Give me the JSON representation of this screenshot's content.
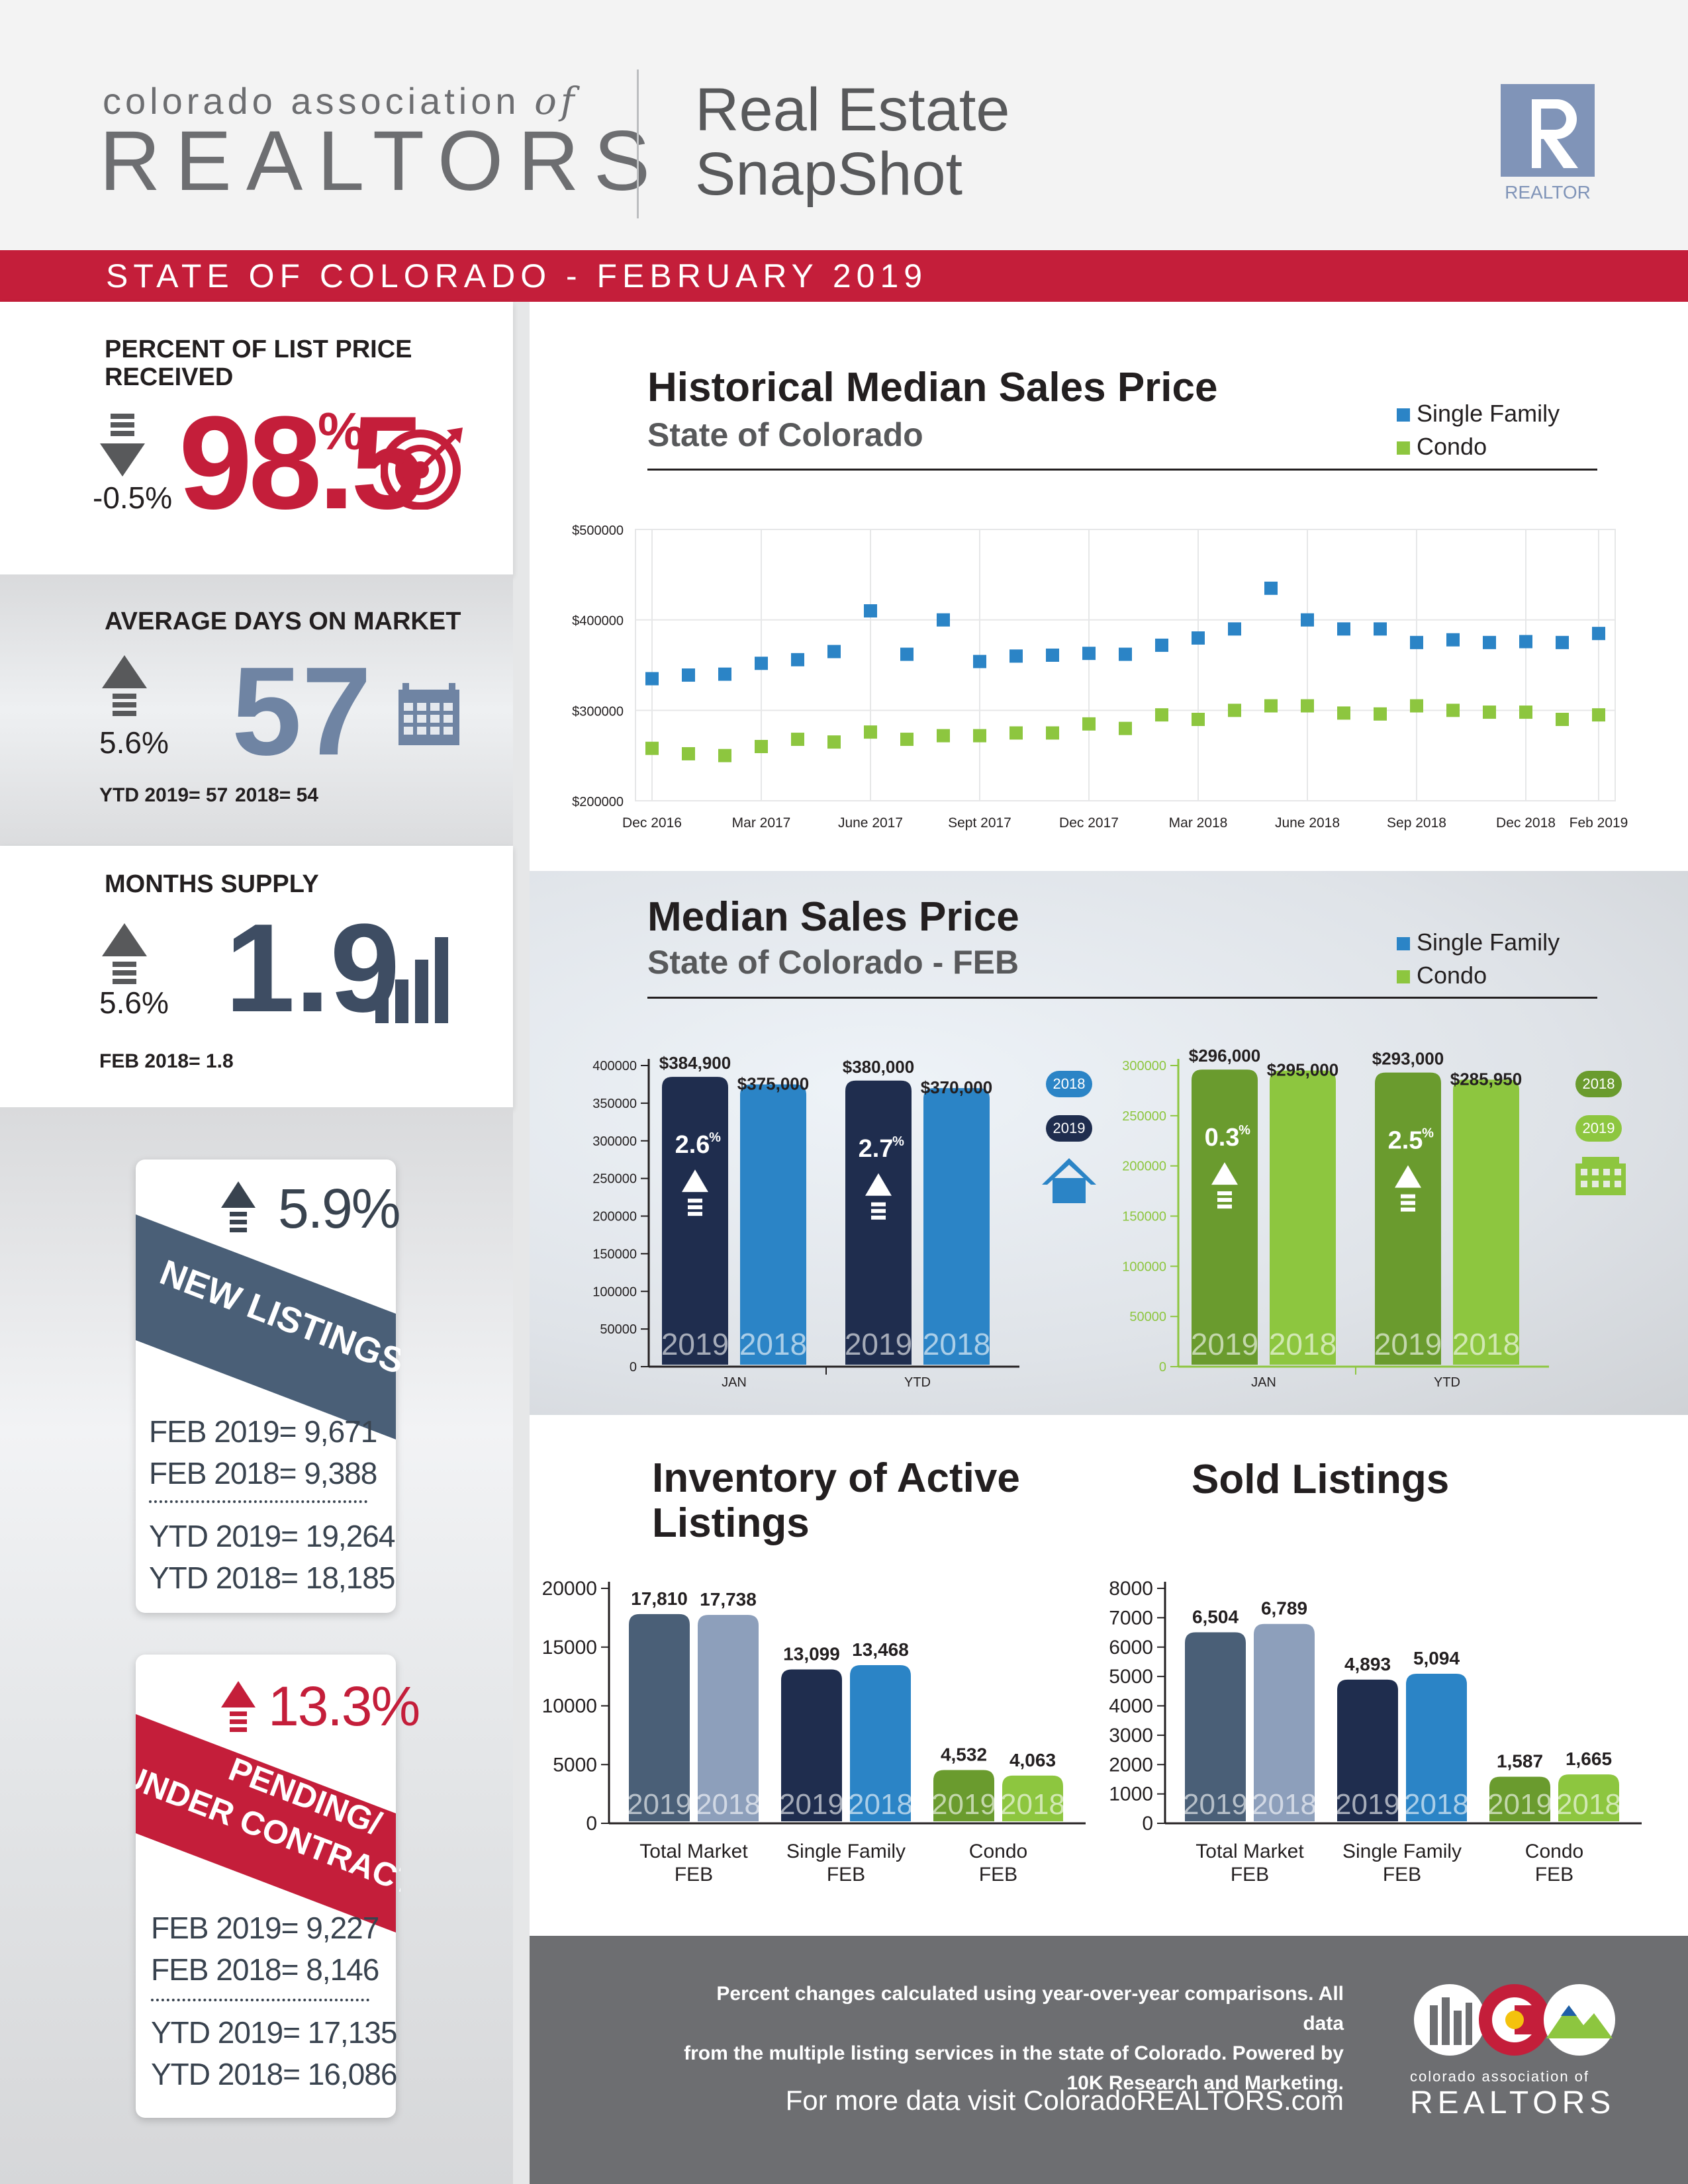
{
  "header": {
    "org_line1": "colorado association",
    "org_of": "of",
    "org_line2": "REALTORS",
    "title_line1": "Real Estate",
    "title_line2": "SnapShot",
    "logo_text": "REALTOR",
    "logo_letter": "R"
  },
  "band": {
    "text": "STATE OF COLORADO - FEBRUARY 2019"
  },
  "list_price": {
    "label_line1": "PERCENT OF LIST PRICE",
    "label_line2": "RECEIVED",
    "change": "-0.5%",
    "value": "98.5",
    "unit": "%"
  },
  "days_on_market": {
    "label": "AVERAGE DAYS ON MARKET",
    "change": "5.6%",
    "value": "57",
    "ytd_2019": "YTD 2019= 57",
    "ytd_2018": "2018= 54"
  },
  "months_supply": {
    "label": "MONTHS SUPPLY",
    "change": "5.6%",
    "value": "1.9",
    "feb_2018": "FEB 2018= 1.8"
  },
  "new_listings": {
    "change": "5.9%",
    "banner": "NEW LISTINGS",
    "lines": [
      "FEB 2019= 9,671",
      "FEB 2018= 9,388",
      "YTD 2019= 19,264",
      "YTD 2018= 18,185"
    ]
  },
  "pending": {
    "change": "13.3%",
    "banner1": "PENDING/",
    "banner2": "UNDER CONTRACT",
    "lines": [
      "FEB 2019= 9,227",
      "FEB 2018= 8,146",
      "YTD 2019= 17,135",
      "YTD 2018= 16,086"
    ]
  },
  "historical": {
    "title": "Historical Median Sales Price",
    "subtitle": "State of Colorado",
    "legend": [
      "Single Family",
      "Condo"
    ]
  },
  "median_feb": {
    "title": "Median Sales Price",
    "subtitle": "State of Colorado - FEB",
    "legend": [
      "Single Family",
      "Condo"
    ],
    "year_tags": [
      "2018",
      "2019"
    ]
  },
  "inventory": {
    "title_line1": "Inventory of Active",
    "title_line2": "Listings"
  },
  "sold": {
    "title": "Sold Listings"
  },
  "footer": {
    "note_line1": "Percent changes calculated using year-over-year comparisons. All data",
    "note_line2": "from the multiple listing services in the state of Colorado. Powered by",
    "note_line3": "10K Research and Marketing.",
    "link": "For more data visit ColoradoREALTORS.com",
    "org_line1": "colorado association of",
    "org_line2": "REALTORS"
  },
  "colors": {
    "red": "#c41e3a",
    "sf_2019": "#1f2d4e",
    "sf_2018": "#2b84c6",
    "condo_2019": "#6a9b2e",
    "condo_2018": "#8dc63f",
    "total_2019": "#4a5f77",
    "total_2018": "#8d9fbb",
    "hist_sf": "#2b84c6",
    "hist_condo": "#8dc63f"
  },
  "chart_data": [
    {
      "id": "historical",
      "type": "scatter",
      "title": "Historical Median Sales Price",
      "subtitle": "State of Colorado",
      "x_tick_labels": [
        "Dec 2016",
        "Mar 2017",
        "June 2017",
        "Sept 2017",
        "Dec 2017",
        "Mar 2018",
        "June 2018",
        "Sep 2018",
        "Dec 2018",
        "Feb 2019"
      ],
      "x": [
        "Dec 2016",
        "Jan 2017",
        "Feb 2017",
        "Mar 2017",
        "Apr 2017",
        "May 2017",
        "Jun 2017",
        "Jul 2017",
        "Aug 2017",
        "Sep 2017",
        "Oct 2017",
        "Nov 2017",
        "Dec 2017",
        "Jan 2018",
        "Feb 2018",
        "Mar 2018",
        "Apr 2018",
        "May 2018",
        "Jun 2018",
        "Jul 2018",
        "Aug 2018",
        "Sep 2018",
        "Oct 2018",
        "Nov 2018",
        "Dec 2018",
        "Jan 2019",
        "Feb 2019"
      ],
      "y_tick_labels": [
        "$500000",
        "$400000",
        "$300000",
        "$200000"
      ],
      "ylim": [
        200000,
        500000
      ],
      "series": [
        {
          "name": "Single Family",
          "values": [
            335000,
            339000,
            340000,
            352000,
            356000,
            365000,
            410000,
            362000,
            400000,
            354000,
            360000,
            361000,
            363000,
            362000,
            372000,
            380000,
            390000,
            435000,
            400000,
            390000,
            390000,
            375000,
            378000,
            375000,
            376000,
            375000,
            385000
          ]
        },
        {
          "name": "Condo",
          "values": [
            258000,
            252000,
            250000,
            260000,
            268000,
            265000,
            276000,
            268000,
            272000,
            272000,
            275000,
            275000,
            285000,
            280000,
            295000,
            290000,
            300000,
            305000,
            305000,
            297000,
            296000,
            305000,
            300000,
            298000,
            298000,
            290000,
            295000
          ]
        }
      ]
    },
    {
      "id": "median_sf",
      "type": "bar",
      "categories": [
        "JAN",
        "YTD"
      ],
      "y_tick_labels": [
        "400000",
        "350000",
        "300000",
        "250000",
        "200000",
        "150000",
        "100000",
        "50000",
        "0"
      ],
      "ylim": [
        0,
        400000
      ],
      "series": [
        {
          "name": "2019",
          "values": [
            384900,
            380000
          ],
          "labels": [
            "$384,900",
            "$380,000"
          ]
        },
        {
          "name": "2018",
          "values": [
            375000,
            370000
          ],
          "labels": [
            "$375,000",
            "$370,000"
          ]
        }
      ],
      "changes": [
        "2.6",
        "2.7"
      ]
    },
    {
      "id": "median_condo",
      "type": "bar",
      "categories": [
        "JAN",
        "YTD"
      ],
      "y_tick_labels": [
        "300000",
        "250000",
        "200000",
        "150000",
        "100000",
        "50000",
        "0"
      ],
      "ylim": [
        0,
        300000
      ],
      "series": [
        {
          "name": "2019",
          "values": [
            296000,
            293000
          ],
          "labels": [
            "$296,000",
            "$293,000"
          ]
        },
        {
          "name": "2018",
          "values": [
            295000,
            285950
          ],
          "labels": [
            "$295,000",
            "$285,950"
          ]
        }
      ],
      "changes": [
        "0.3",
        "2.5"
      ]
    },
    {
      "id": "inventory",
      "type": "bar",
      "categories": [
        "Total Market FEB",
        "Single Family FEB",
        "Condo FEB"
      ],
      "y_tick_labels": [
        "20000",
        "15000",
        "10000",
        "5000",
        "0"
      ],
      "ylim": [
        0,
        20000
      ],
      "series": [
        {
          "name": "2019",
          "values": [
            17810,
            13099,
            4532
          ],
          "labels": [
            "17,810",
            "13,099",
            "4,532"
          ]
        },
        {
          "name": "2018",
          "values": [
            17738,
            13468,
            4063
          ],
          "labels": [
            "17,738",
            "13,468",
            "4,063"
          ]
        }
      ]
    },
    {
      "id": "sold",
      "type": "bar",
      "categories": [
        "Total Market FEB",
        "Single Family FEB",
        "Condo FEB"
      ],
      "y_tick_labels": [
        "8000",
        "7000",
        "6000",
        "5000",
        "4000",
        "3000",
        "2000",
        "1000",
        "0"
      ],
      "ylim": [
        0,
        8000
      ],
      "series": [
        {
          "name": "2019",
          "values": [
            6504,
            4893,
            1587
          ],
          "labels": [
            "6,504",
            "4,893",
            "1,587"
          ]
        },
        {
          "name": "2018",
          "values": [
            6789,
            5094,
            1665
          ],
          "labels": [
            "6,789",
            "5,094",
            "1,665"
          ]
        }
      ]
    }
  ]
}
